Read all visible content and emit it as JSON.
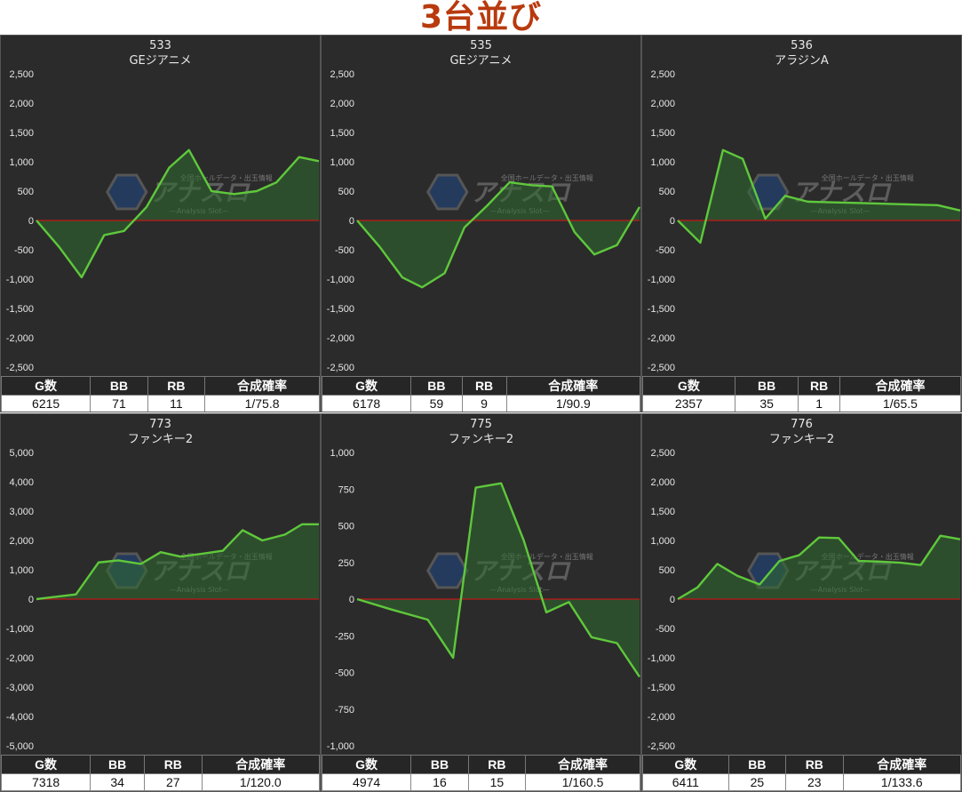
{
  "page_title": "3台並び",
  "watermark": {
    "brand": "アナスロ",
    "tagline": "全国ホールデータ・出玉情報",
    "subtitle": "—Analysis Slot—"
  },
  "stat_headers": [
    "G数",
    "BB",
    "RB",
    "合成確率"
  ],
  "colors": {
    "line": "#5fc83c",
    "fill": "#2f6b2f",
    "zero_line": "#c01818",
    "panel_bg": "#2b2b2b",
    "title": "#b83a0e"
  },
  "panels": [
    {
      "number": "533",
      "machine": "GEジアニメ",
      "stats": {
        "games": "6215",
        "bb": "71",
        "rb": "11",
        "prob": "1/75.8"
      },
      "y_ticks": [
        "2,500",
        "2,000",
        "1,500",
        "1,000",
        "500",
        "0",
        "-500",
        "-1,000",
        "-1,500",
        "-2,000",
        "-2,500"
      ]
    },
    {
      "number": "535",
      "machine": "GEジアニメ",
      "stats": {
        "games": "6178",
        "bb": "59",
        "rb": "9",
        "prob": "1/90.9"
      },
      "y_ticks": [
        "2,500",
        "2,000",
        "1,500",
        "1,000",
        "500",
        "0",
        "-500",
        "-1,000",
        "-1,500",
        "-2,000",
        "-2,500"
      ]
    },
    {
      "number": "536",
      "machine": "アラジンA",
      "stats": {
        "games": "2357",
        "bb": "35",
        "rb": "1",
        "prob": "1/65.5"
      },
      "y_ticks": [
        "2,500",
        "2,000",
        "1,500",
        "1,000",
        "500",
        "0",
        "-500",
        "-1,000",
        "-1,500",
        "-2,000",
        "-2,500"
      ]
    },
    {
      "number": "773",
      "machine": "ファンキー2",
      "stats": {
        "games": "7318",
        "bb": "34",
        "rb": "27",
        "prob": "1/120.0"
      },
      "y_ticks": [
        "5,000",
        "4,000",
        "3,000",
        "2,000",
        "1,000",
        "0",
        "-1,000",
        "-2,000",
        "-3,000",
        "-4,000",
        "-5,000"
      ]
    },
    {
      "number": "775",
      "machine": "ファンキー2",
      "stats": {
        "games": "4974",
        "bb": "16",
        "rb": "15",
        "prob": "1/160.5"
      },
      "y_ticks": [
        "1,000",
        "750",
        "500",
        "250",
        "0",
        "-250",
        "-500",
        "-750",
        "-1,000"
      ]
    },
    {
      "number": "776",
      "machine": "ファンキー2",
      "stats": {
        "games": "6411",
        "bb": "25",
        "rb": "23",
        "prob": "1/133.6"
      },
      "y_ticks": [
        "2,500",
        "2,000",
        "1,500",
        "1,000",
        "500",
        "0",
        "-500",
        "-1,000",
        "-1,500",
        "-2,000",
        "-2,500"
      ]
    }
  ],
  "chart_data": [
    {
      "type": "area",
      "title": "533 GEジアニメ",
      "ylim": [
        -2500,
        2500
      ],
      "x": [
        0,
        0.08,
        0.16,
        0.24,
        0.31,
        0.39,
        0.47,
        0.54,
        0.62,
        0.7,
        0.78,
        0.85,
        0.93,
        1.0
      ],
      "values": [
        0,
        -450,
        -970,
        -250,
        -180,
        230,
        900,
        1200,
        500,
        450,
        500,
        650,
        1080,
        1010
      ]
    },
    {
      "type": "area",
      "title": "535 GEジアニメ",
      "ylim": [
        -2500,
        2500
      ],
      "x": [
        0,
        0.08,
        0.16,
        0.23,
        0.31,
        0.38,
        0.46,
        0.54,
        0.62,
        0.69,
        0.77,
        0.84,
        0.92,
        1.0
      ],
      "values": [
        0,
        -450,
        -970,
        -1140,
        -900,
        -120,
        250,
        650,
        600,
        580,
        -200,
        -580,
        -420,
        230
      ]
    },
    {
      "type": "area",
      "title": "536 アラジンA",
      "ylim": [
        -2500,
        2500
      ],
      "x": [
        0,
        0.08,
        0.16,
        0.23,
        0.31,
        0.38,
        0.46,
        0.54,
        0.62,
        0.69,
        0.77,
        0.84,
        0.92,
        1.0
      ],
      "values": [
        0,
        -380,
        1200,
        1050,
        30,
        420,
        320,
        310,
        300,
        290,
        280,
        270,
        260,
        170
      ]
    },
    {
      "type": "area",
      "title": "773 ファンキー2",
      "ylim": [
        -5000,
        5000
      ],
      "x": [
        0,
        0.07,
        0.14,
        0.22,
        0.29,
        0.37,
        0.44,
        0.51,
        0.59,
        0.66,
        0.73,
        0.8,
        0.88,
        0.94,
        1.0
      ],
      "values": [
        0,
        80,
        160,
        1250,
        1320,
        1200,
        1600,
        1450,
        1550,
        1650,
        2350,
        2000,
        2200,
        2550,
        2550
      ]
    },
    {
      "type": "area",
      "title": "775 ファンキー2",
      "ylim": [
        -1000,
        1000
      ],
      "x": [
        0,
        0.12,
        0.25,
        0.34,
        0.42,
        0.51,
        0.59,
        0.67,
        0.75,
        0.83,
        0.92,
        1.0
      ],
      "values": [
        0,
        -70,
        -140,
        -400,
        760,
        790,
        400,
        -90,
        -20,
        -260,
        -300,
        -530
      ]
    },
    {
      "type": "area",
      "title": "776 ファンキー2",
      "ylim": [
        -2500,
        2500
      ],
      "x": [
        0,
        0.07,
        0.14,
        0.21,
        0.29,
        0.36,
        0.43,
        0.5,
        0.57,
        0.64,
        0.71,
        0.79,
        0.86,
        0.93,
        1.0
      ],
      "values": [
        0,
        200,
        600,
        400,
        250,
        650,
        750,
        1050,
        1040,
        650,
        640,
        620,
        580,
        1080,
        1020
      ]
    }
  ]
}
